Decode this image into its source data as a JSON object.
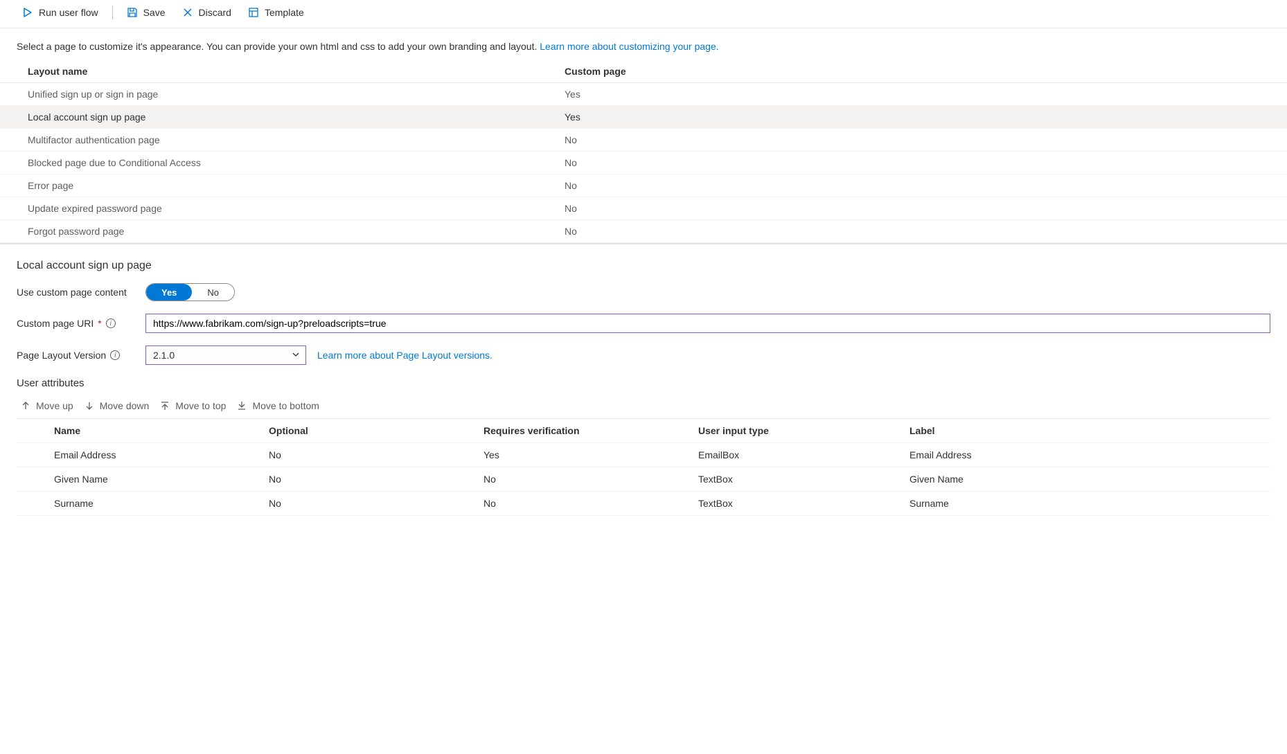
{
  "toolbar": {
    "run": "Run user flow",
    "save": "Save",
    "discard": "Discard",
    "template": "Template"
  },
  "intro": {
    "text": "Select a page to customize it's appearance. You can provide your own html and css to add your own branding and layout. ",
    "link": "Learn more about customizing your page."
  },
  "layouts": {
    "headers": {
      "name": "Layout name",
      "custom": "Custom page"
    },
    "rows": [
      {
        "name": "Unified sign up or sign in page",
        "custom": "Yes",
        "selected": false
      },
      {
        "name": "Local account sign up page",
        "custom": "Yes",
        "selected": true
      },
      {
        "name": "Multifactor authentication page",
        "custom": "No",
        "selected": false
      },
      {
        "name": "Blocked page due to Conditional Access",
        "custom": "No",
        "selected": false
      },
      {
        "name": "Error page",
        "custom": "No",
        "selected": false
      },
      {
        "name": "Update expired password page",
        "custom": "No",
        "selected": false
      },
      {
        "name": "Forgot password page",
        "custom": "No",
        "selected": false
      }
    ]
  },
  "detail": {
    "title": "Local account sign up page",
    "useCustomLabel": "Use custom page content",
    "toggle": {
      "yes": "Yes",
      "no": "No",
      "value": "yes"
    },
    "uriLabel": "Custom page URI",
    "uriValue": "https://www.fabrikam.com/sign-up?preloadscripts=true",
    "versionLabel": "Page Layout Version",
    "versionValue": "2.1.0",
    "versionLink": "Learn more about Page Layout versions."
  },
  "attrs": {
    "heading": "User attributes",
    "move": {
      "up": "Move up",
      "down": "Move down",
      "top": "Move to top",
      "bottom": "Move to bottom"
    },
    "headers": {
      "name": "Name",
      "optional": "Optional",
      "requires": "Requires verification",
      "input": "User input type",
      "label": "Label"
    },
    "rows": [
      {
        "name": "Email Address",
        "optional": "No",
        "requires": "Yes",
        "input": "EmailBox",
        "label": "Email Address"
      },
      {
        "name": "Given Name",
        "optional": "No",
        "requires": "No",
        "input": "TextBox",
        "label": "Given Name"
      },
      {
        "name": "Surname",
        "optional": "No",
        "requires": "No",
        "input": "TextBox",
        "label": "Surname"
      }
    ]
  },
  "colors": {
    "link": "#0078d4",
    "activeBorder": "#8661c5",
    "selectedRow": "#f3f2f1"
  }
}
